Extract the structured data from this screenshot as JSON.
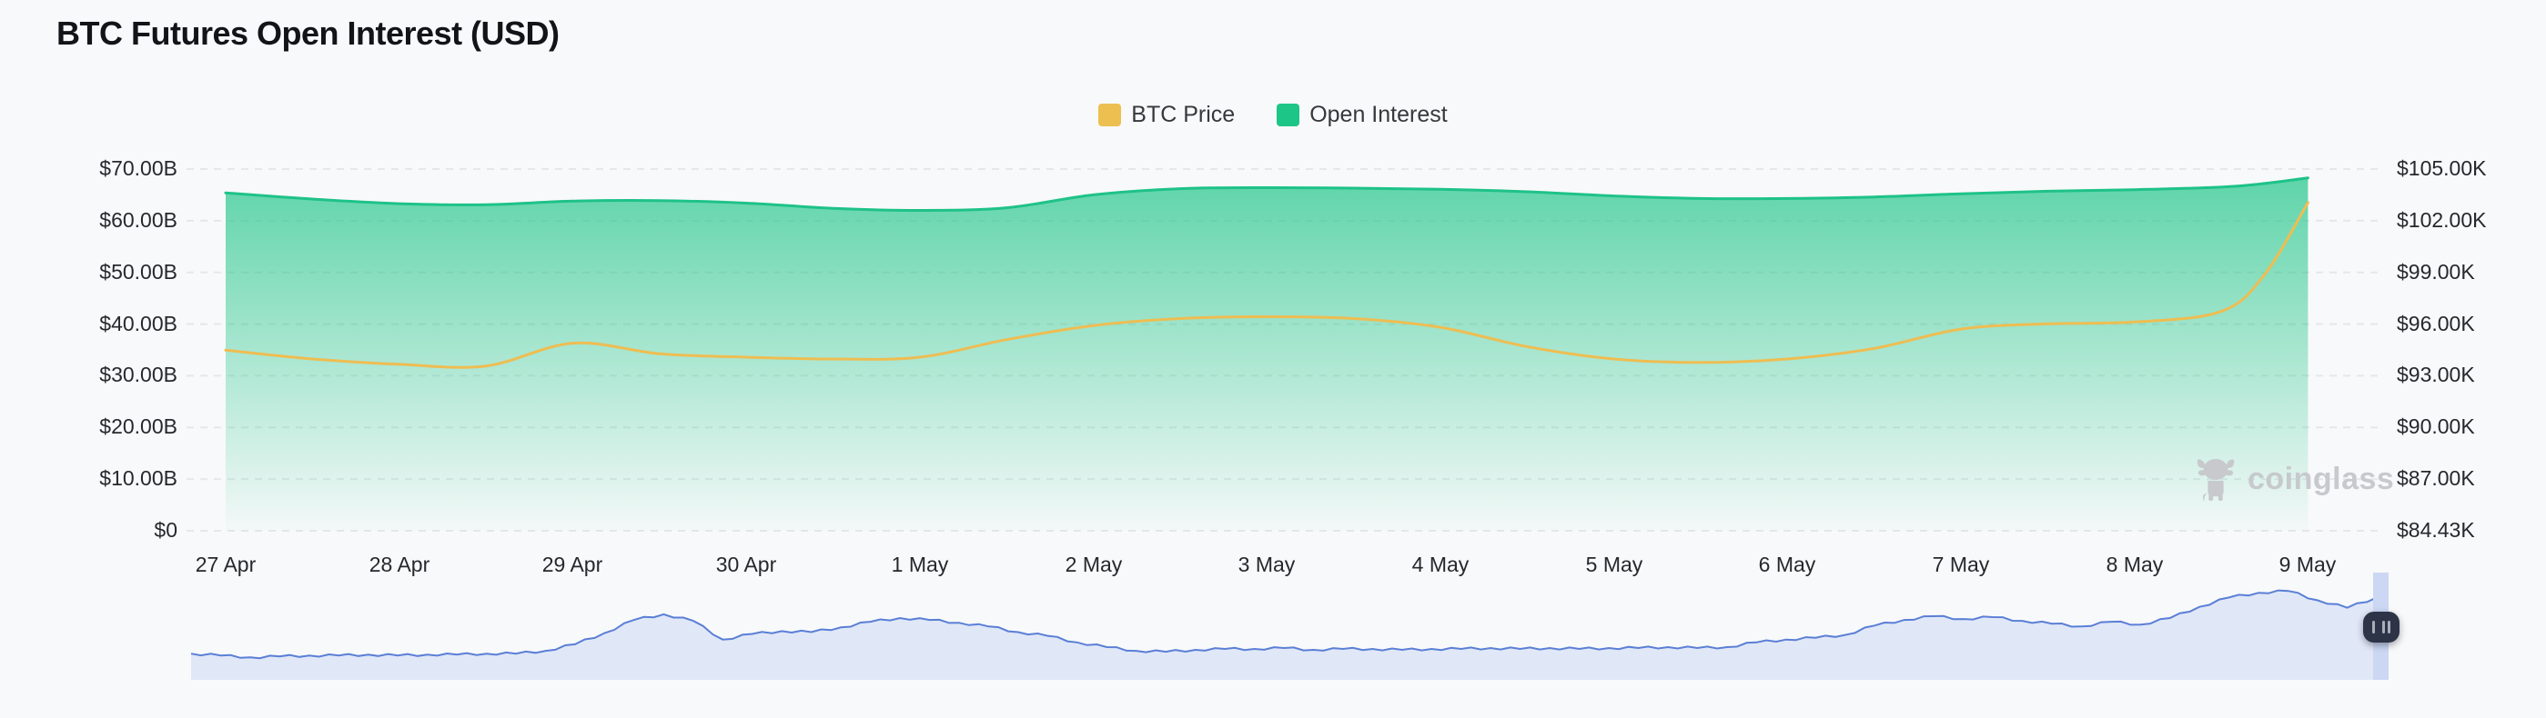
{
  "page": {
    "title": "BTC Futures Open Interest (USD)"
  },
  "legend": {
    "items": [
      {
        "label": "BTC Price",
        "color": "#ecbf50"
      },
      {
        "label": "Open Interest",
        "color": "#1dc687"
      }
    ]
  },
  "axes": {
    "left": {
      "labels": [
        "$70.00B",
        "$60.00B",
        "$50.00B",
        "$40.00B",
        "$30.00B",
        "$20.00B",
        "$10.00B",
        "$0"
      ]
    },
    "right": {
      "labels": [
        "$105.00K",
        "$102.00K",
        "$99.00K",
        "$96.00K",
        "$93.00K",
        "$90.00K",
        "$87.00K",
        "$84.43K"
      ]
    },
    "x": {
      "labels": [
        "27 Apr",
        "28 Apr",
        "29 Apr",
        "30 Apr",
        "1 May",
        "2 May",
        "3 May",
        "4 May",
        "5 May",
        "6 May",
        "7 May",
        "8 May",
        "9 May"
      ]
    }
  },
  "watermark": {
    "text": "coinglass",
    "icon": "coinglass-bull"
  },
  "colors": {
    "price_line": "#eebd52",
    "oi_line": "#1ec288",
    "oi_fill_top": "rgba(30,197,136,0.72)",
    "oi_fill_bottom": "rgba(30,197,136,0.02)",
    "grid": "#e6e7e9",
    "navigator_line": "#5a7fd6",
    "navigator_fill": "#e0e7f7",
    "selection_band": "#cbd7f3",
    "handle_bg": "#2e3447",
    "handle_bars": "#a9aeba",
    "watermark": "#c7c9cc"
  },
  "chart_data": {
    "type": "area",
    "title": "BTC Futures Open Interest (USD)",
    "legend_position": "top-center",
    "grid": "horizontal-dashed",
    "x_unit": "days since 27 Apr",
    "x": [
      0,
      0.5,
      1,
      1.5,
      2,
      2.5,
      3,
      3.5,
      4,
      4.5,
      5,
      5.5,
      6,
      6.5,
      7,
      7.5,
      8,
      8.5,
      9,
      9.5,
      10,
      10.5,
      11,
      11.5,
      11.75,
      12
    ],
    "x_tick_labels": [
      "27 Apr",
      "28 Apr",
      "29 Apr",
      "30 Apr",
      "1 May",
      "2 May",
      "3 May",
      "4 May",
      "5 May",
      "6 May",
      "7 May",
      "8 May",
      "9 May"
    ],
    "series": [
      {
        "name": "Open Interest",
        "type": "area",
        "axis": "left",
        "unit": "USD billions",
        "color": "#1dc687",
        "values": [
          65.4,
          64.2,
          63.3,
          63.1,
          63.8,
          63.9,
          63.4,
          62.4,
          62.0,
          62.5,
          65.0,
          66.2,
          66.4,
          66.3,
          66.1,
          65.6,
          64.8,
          64.3,
          64.3,
          64.6,
          65.2,
          65.7,
          66.0,
          66.5,
          67.2,
          68.3
        ]
      },
      {
        "name": "BTC Price",
        "type": "line",
        "axis": "right",
        "unit": "USD thousands",
        "color": "#ecbf50",
        "values": [
          94.7,
          94.2,
          93.9,
          93.8,
          95.1,
          94.5,
          94.3,
          94.2,
          94.3,
          95.3,
          96.1,
          96.5,
          96.6,
          96.5,
          96.0,
          94.9,
          94.2,
          94.0,
          94.2,
          94.8,
          95.9,
          96.2,
          96.3,
          96.9,
          99.0,
          103.1
        ]
      }
    ],
    "left_axis": {
      "series": "Open Interest",
      "range": [
        0,
        70
      ],
      "tick_step": 10,
      "unit": "billion USD"
    },
    "right_axis": {
      "series": "BTC Price",
      "range": [
        84.43,
        105
      ],
      "tick_step": 3,
      "unit": "thousand USD"
    }
  },
  "navigator": {
    "description": "range-selector sparkline (BTC price history), full range selected, drag handle at right edge",
    "values_norm": [
      0.28,
      0.26,
      0.24,
      0.25,
      0.26,
      0.26,
      0.27,
      0.26,
      0.27,
      0.27,
      0.28,
      0.28,
      0.31,
      0.38,
      0.5,
      0.64,
      0.7,
      0.63,
      0.43,
      0.49,
      0.52,
      0.51,
      0.56,
      0.62,
      0.66,
      0.64,
      0.61,
      0.57,
      0.51,
      0.47,
      0.4,
      0.35,
      0.31,
      0.3,
      0.32,
      0.33,
      0.33,
      0.34,
      0.32,
      0.33,
      0.33,
      0.32,
      0.33,
      0.33,
      0.34,
      0.33,
      0.34,
      0.33,
      0.34,
      0.34,
      0.35,
      0.34,
      0.35,
      0.4,
      0.43,
      0.45,
      0.48,
      0.58,
      0.64,
      0.68,
      0.65,
      0.67,
      0.63,
      0.6,
      0.57,
      0.62,
      0.59,
      0.66,
      0.78,
      0.88,
      0.93,
      0.95,
      0.85,
      0.77,
      0.88
    ],
    "handle": {
      "position": "right",
      "icon": "grip-bars"
    }
  }
}
